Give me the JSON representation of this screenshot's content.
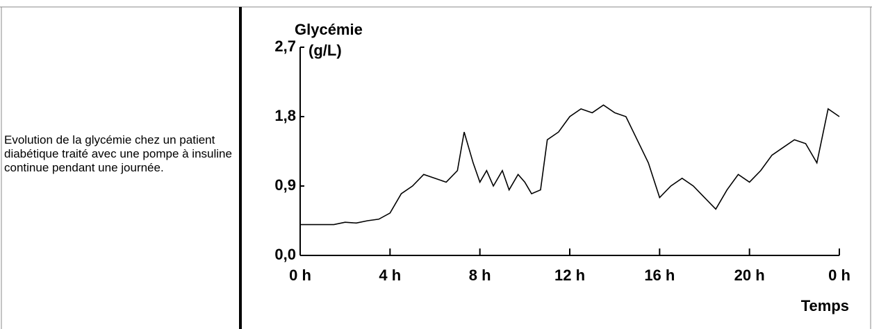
{
  "caption": "Evolution de la glycémie chez un patient diabétique traité avec une pompe à insuline continue pendant une journée.",
  "chart_data": {
    "type": "line",
    "y_label": "Glycémie",
    "y_unit": "(g/L)",
    "x_label": "Temps",
    "x": [
      0,
      0.5,
      1,
      1.5,
      2,
      2.5,
      3,
      3.5,
      4,
      4.5,
      5,
      5.5,
      6,
      6.5,
      7,
      7.3,
      7.7,
      8,
      8.3,
      8.6,
      9,
      9.3,
      9.7,
      10,
      10.3,
      10.7,
      11,
      11.5,
      12,
      12.5,
      13,
      13.5,
      14,
      14.5,
      15,
      15.5,
      16,
      16.5,
      17,
      17.5,
      18,
      18.5,
      19,
      19.5,
      20,
      20.5,
      21,
      21.5,
      22,
      22.5,
      23,
      23.5,
      24
    ],
    "series": [
      {
        "color": "#000000",
        "values": [
          0.4,
          0.4,
          0.4,
          0.4,
          0.43,
          0.42,
          0.45,
          0.47,
          0.55,
          0.8,
          0.9,
          1.05,
          1.0,
          0.95,
          1.1,
          1.6,
          1.2,
          0.95,
          1.1,
          0.9,
          1.1,
          0.85,
          1.05,
          0.95,
          0.8,
          0.85,
          1.5,
          1.6,
          1.8,
          1.9,
          1.85,
          1.95,
          1.85,
          1.8,
          1.5,
          1.2,
          0.75,
          0.9,
          1.0,
          0.9,
          0.75,
          0.6,
          0.85,
          1.05,
          0.95,
          1.1,
          1.3,
          1.4,
          1.5,
          1.45,
          1.2,
          1.9,
          1.8
        ]
      }
    ],
    "xlim": [
      0,
      24
    ],
    "xticks": [
      {
        "value": 0,
        "label": "0 h"
      },
      {
        "value": 4,
        "label": "4 h"
      },
      {
        "value": 8,
        "label": "8 h"
      },
      {
        "value": 12,
        "label": "12 h"
      },
      {
        "value": 16,
        "label": "16 h"
      },
      {
        "value": 20,
        "label": "20 h"
      },
      {
        "value": 24,
        "label": "0 h"
      }
    ],
    "ylim": [
      0,
      2.7
    ],
    "yticks": [
      {
        "value": 0,
        "label": "0,0"
      },
      {
        "value": 0.9,
        "label": "0,9"
      },
      {
        "value": 1.8,
        "label": "1,8"
      },
      {
        "value": 2.7,
        "label": "2,7"
      }
    ]
  }
}
